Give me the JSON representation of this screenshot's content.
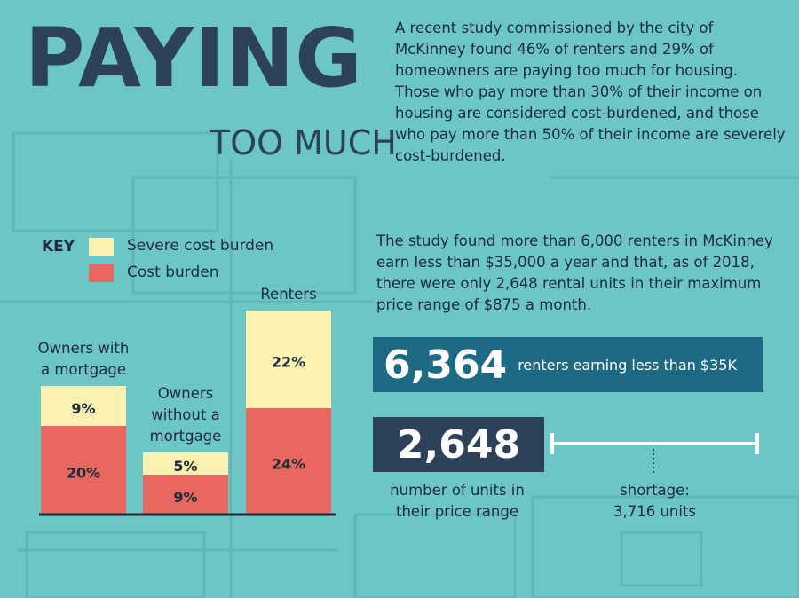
{
  "header": {
    "title": "PAYING",
    "subtitle": "TOO MUCH",
    "intro": "A recent study commissioned by the city of McKinney found 46% of renters and 29% of homeowners are paying too much for housing. Those who pay more than 30% of their income on housing are considered cost-burdened, and those who pay more than 50% of their income are severely cost-burdened."
  },
  "chart_data": {
    "type": "stacked-bar",
    "legend_title": "KEY",
    "categories": [
      "Owners with a mortgage",
      "Owners without a mortgage",
      "Renters"
    ],
    "series": [
      {
        "name": "Cost burden",
        "color": "#e8675f",
        "values": [
          20,
          9,
          24
        ],
        "value_labels": [
          "20%",
          "9%",
          "24%"
        ]
      },
      {
        "name": "Severe cost burden",
        "color": "#fbf2b1",
        "values": [
          9,
          5,
          22
        ],
        "value_labels": [
          "9%",
          "5%",
          "22%"
        ]
      }
    ]
  },
  "study": "The study found more than 6,000 renters in McKinney earn less than $35,000 a year and that, as of 2018, there were only 2,648 rental units in their maximum price range of $875 a month.",
  "stats": {
    "renters": {
      "number": "6,364",
      "label": "renters earning less than $35K"
    },
    "units": {
      "number": "2,648",
      "label": "number of units in their price range"
    },
    "shortage": [
      "shortage:",
      "3,716 units"
    ]
  }
}
